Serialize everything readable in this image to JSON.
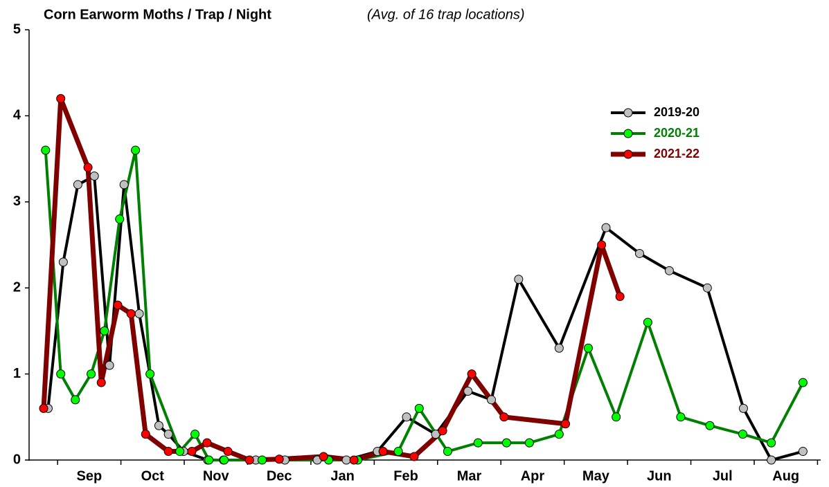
{
  "chart_data": {
    "type": "line",
    "title": "Corn Earworm Moths / Trap / Night",
    "subtitle": "(Avg. of 16 trap locations)",
    "xlim": [
      -0.45,
      12.05
    ],
    "xticks": [
      {
        "value": 0.5,
        "label": "Sep"
      },
      {
        "value": 1.5,
        "label": "Oct"
      },
      {
        "value": 2.5,
        "label": "Nov"
      },
      {
        "value": 3.5,
        "label": "Dec"
      },
      {
        "value": 4.5,
        "label": "Jan"
      },
      {
        "value": 5.5,
        "label": "Feb"
      },
      {
        "value": 6.5,
        "label": "Mar"
      },
      {
        "value": 7.5,
        "label": "Apr"
      },
      {
        "value": 8.5,
        "label": "May"
      },
      {
        "value": 9.5,
        "label": "Jun"
      },
      {
        "value": 10.5,
        "label": "Jul"
      },
      {
        "value": 11.5,
        "label": "Aug"
      }
    ],
    "ylim": [
      0,
      5
    ],
    "yticks": [
      0,
      1,
      2,
      3,
      4,
      5
    ],
    "series": [
      {
        "name": "2019-20",
        "color": "#000000",
        "marker_color": "#c0c0c0",
        "x": [
          -0.15,
          0.09,
          0.32,
          0.58,
          0.82,
          1.05,
          1.29,
          1.6,
          1.75,
          1.99,
          2.37,
          2.62,
          3.13,
          3.59,
          4.1,
          4.56,
          5.05,
          5.51,
          5.97,
          6.48,
          6.85,
          7.28,
          7.92,
          8.66,
          9.19,
          9.66,
          10.26,
          10.83,
          11.27,
          11.77
        ],
        "values": [
          0.6,
          2.3,
          3.2,
          3.3,
          1.1,
          3.2,
          1.7,
          0.4,
          0.3,
          0.1,
          0,
          0,
          0,
          0,
          0,
          0,
          0.1,
          0.5,
          0.3,
          0.8,
          0.7,
          2.1,
          1.3,
          2.7,
          2.4,
          2.2,
          2.0,
          0.6,
          0,
          0.1
        ]
      },
      {
        "name": "2020-21",
        "color": "#008000",
        "marker_color": "#00ff00",
        "x": [
          -0.19,
          0.05,
          0.28,
          0.53,
          0.74,
          0.98,
          1.23,
          1.46,
          1.93,
          2.17,
          2.39,
          2.63,
          3.23,
          4.28,
          4.74,
          5.38,
          5.71,
          6.16,
          6.64,
          7.09,
          7.45,
          7.92,
          8.38,
          8.82,
          9.32,
          9.84,
          10.3,
          10.82,
          11.27,
          11.77
        ],
        "values": [
          3.6,
          1.0,
          0.7,
          1.0,
          1.5,
          2.8,
          3.6,
          1.0,
          0.1,
          0.3,
          0,
          0,
          0,
          0,
          0,
          0.1,
          0.6,
          0.1,
          0.2,
          0.2,
          0.2,
          0.3,
          1.3,
          0.5,
          1.6,
          0.5,
          0.4,
          0.3,
          0.2,
          0.9
        ]
      },
      {
        "name": "2021-22",
        "color": "#800000",
        "marker_color": "#ff0000",
        "x": [
          -0.22,
          0.05,
          0.48,
          0.69,
          0.95,
          1.16,
          1.39,
          1.75,
          2.12,
          2.36,
          2.69,
          3.03,
          3.5,
          4.2,
          4.68,
          5.14,
          5.63,
          6.08,
          6.54,
          7.05,
          8.02,
          8.59,
          8.88
        ],
        "values": [
          0.6,
          4.2,
          3.4,
          0.9,
          1.8,
          1.7,
          0.3,
          0.1,
          0.1,
          0.2,
          0.1,
          0,
          0.01,
          0.04,
          0,
          0.1,
          0.04,
          0.34,
          1.0,
          0.5,
          0.42,
          2.5,
          1.9
        ]
      }
    ]
  }
}
